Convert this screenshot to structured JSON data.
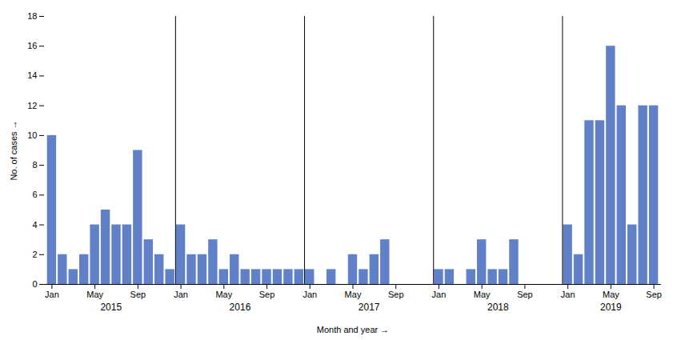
{
  "chart_data": {
    "type": "bar",
    "values": [
      10,
      2,
      1,
      2,
      4,
      5,
      4,
      4,
      9,
      3,
      2,
      1,
      4,
      2,
      2,
      3,
      1,
      2,
      1,
      1,
      1,
      1,
      1,
      1,
      1,
      0,
      1,
      0,
      2,
      1,
      2,
      3,
      0,
      0,
      0,
      0,
      1,
      1,
      0,
      1,
      3,
      1,
      1,
      3,
      0,
      0,
      0,
      0,
      4,
      2,
      11,
      11,
      16,
      12,
      4,
      12,
      12
    ],
    "categories": [
      "Jan",
      null,
      null,
      null,
      "May",
      null,
      null,
      null,
      "Sep",
      null,
      null,
      null,
      "Jan",
      null,
      null,
      null,
      "May",
      null,
      null,
      null,
      "Sep",
      null,
      null,
      null,
      "Jan",
      null,
      null,
      null,
      "May",
      null,
      null,
      null,
      "Sep",
      null,
      null,
      null,
      "Jan",
      null,
      null,
      null,
      "May",
      null,
      null,
      null,
      "Sep",
      null,
      null,
      null,
      "Jan",
      null,
      null,
      null,
      "May",
      null,
      null,
      null,
      "Sep"
    ],
    "years": [
      "2015",
      "2015",
      "2015",
      "2015",
      "2015",
      "2015",
      "2015",
      "2015",
      "2015",
      "2015",
      "2015",
      "2015",
      "2016",
      "2016",
      "2016",
      "2016",
      "2016",
      "2016",
      "2016",
      "2016",
      "2016",
      "2016",
      "2016",
      "2016",
      "2017",
      "2017",
      "2017",
      "2017",
      "2017",
      "2017",
      "2017",
      "2017",
      "2017",
      "2017",
      "2017",
      "2017",
      "2018",
      "2018",
      "2018",
      "2018",
      "2018",
      "2018",
      "2018",
      "2018",
      "2018",
      "2018",
      "2018",
      "2018",
      "2019",
      "2019",
      "2019",
      "2019",
      "2019",
      "2019",
      "2019",
      "2019",
      "2019"
    ],
    "color": "#6080C8",
    "xlabel": "Month and year",
    "ylabel": "No. of cases",
    "ylim": [
      0,
      18
    ],
    "yticks": [
      0,
      2,
      4,
      6,
      8,
      10,
      12,
      14,
      16,
      18
    ],
    "grid": false
  }
}
